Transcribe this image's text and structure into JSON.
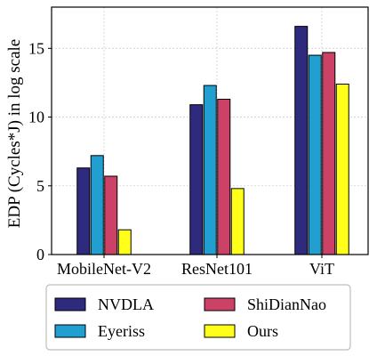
{
  "chart_data": {
    "type": "bar",
    "categories": [
      "MobileNet-V2",
      "ResNet101",
      "ViT"
    ],
    "series": [
      {
        "name": "NVDLA",
        "color": "#2e2a7e",
        "values": [
          6.3,
          10.9,
          16.6
        ]
      },
      {
        "name": "Eyeriss",
        "color": "#209fd0",
        "values": [
          7.2,
          12.3,
          14.5
        ]
      },
      {
        "name": "ShiDianNao",
        "color": "#cc4266",
        "values": [
          5.7,
          11.3,
          14.7
        ]
      },
      {
        "name": "Ours",
        "color": "#ffff1a",
        "values": [
          1.8,
          4.8,
          12.4
        ]
      }
    ],
    "title": "",
    "xlabel": "",
    "ylabel": "EDP (Cycles*J) in log scale",
    "ylim": [
      0,
      18
    ],
    "yticks": [
      "0",
      "5",
      "10",
      "15"
    ],
    "grid": true,
    "legend_position": "below"
  }
}
